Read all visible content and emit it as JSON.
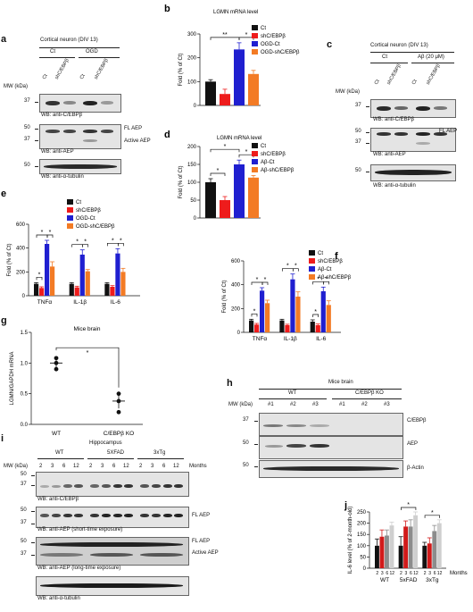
{
  "panels": {
    "a": {
      "label": "a",
      "title": "Cortical neuron (DIV 13)",
      "groups": [
        "Ct",
        "OGD"
      ],
      "lanes": [
        "Ct",
        "shC/EBPβ",
        "Ct",
        "shC/EBPβ"
      ],
      "mw_label": "MW (kDa)",
      "blots": [
        {
          "mw": [
            "37"
          ],
          "wb": "WB: anti-C/EBPβ",
          "side": []
        },
        {
          "mw": [
            "50",
            "37"
          ],
          "wb": "WB: anti-AEP",
          "side": [
            "FL AEP",
            "Active AEP"
          ]
        },
        {
          "mw": [
            "50"
          ],
          "wb": "WB: anti-α-tubulin",
          "side": []
        }
      ]
    },
    "c": {
      "label": "c",
      "title": "Cortical neuron (DIV 13)",
      "groups": [
        "Ct",
        "Aβ (20 μM)"
      ],
      "lanes": [
        "Ct",
        "shC/EBPβ",
        "Ct",
        "shC/EBPβ"
      ],
      "mw_label": "MW (kDa)",
      "blots": [
        {
          "mw": [
            "37"
          ],
          "wb": "WB: anti-C/EBPβ",
          "side": []
        },
        {
          "mw": [
            "50",
            "37"
          ],
          "wb": "WB: anti-AEP",
          "side": [
            "FL AEP",
            "Active AEP"
          ]
        },
        {
          "mw": [
            "50"
          ],
          "wb": "WB: anti-α-tubulin",
          "side": []
        }
      ]
    },
    "g": {
      "label": "g",
      "title": "Mice brain",
      "ylabel": "LGMN/GAPDH mRNA",
      "yticks": [
        "0.0",
        "0.5",
        "1.0",
        "1.5"
      ],
      "xticks": [
        "WT",
        "C/EBPβ KO"
      ],
      "sig": "*"
    },
    "h": {
      "label": "h",
      "title": "Mice brain",
      "mw_label": "MW (kDa)",
      "groups": [
        "WT",
        "C/EBPβ KO"
      ],
      "lanes": [
        "#1",
        "#2",
        "#3",
        "#1",
        "#2",
        "#3"
      ],
      "blots": [
        {
          "mw": [
            "37"
          ],
          "name": "C/EBPβ"
        },
        {
          "mw": [
            "50"
          ],
          "name": "AEP"
        },
        {
          "mw": [
            "50"
          ],
          "name": "β-Actin"
        }
      ]
    },
    "i": {
      "label": "i",
      "title": "Hippocampus",
      "mw_label": "MW (kDa)",
      "groups": [
        "WT",
        "5XFAD",
        "3xTg"
      ],
      "lanes": [
        "2",
        "3",
        "6",
        "12",
        "2",
        "3",
        "6",
        "12",
        "2",
        "3",
        "6",
        "12"
      ],
      "lanes_suffix": "Months",
      "blots": [
        {
          "mw": [
            "50",
            "37"
          ],
          "wb": "WB: anti-C/EBPβ",
          "side": []
        },
        {
          "mw": [
            "50",
            "37"
          ],
          "wb": "WB: anti-AEP (short-time exposure)",
          "side": [
            "FL AEP"
          ]
        },
        {
          "mw": [
            "50",
            "37"
          ],
          "wb": "WB: anti-AEP (long-time exposure)",
          "side": [
            "FL AEP",
            "Active AEP"
          ]
        },
        {
          "mw": [],
          "wb": "WB: anti-α-tubulin",
          "side": []
        }
      ]
    }
  },
  "chart_data": [
    {
      "panel": "b",
      "type": "bar",
      "title": "LGMN mRNA level",
      "ylabel": "Fold (% of Ct)",
      "ylim": [
        0,
        300
      ],
      "yticks": [
        0,
        100,
        200,
        300
      ],
      "categories": [
        "Ct",
        "shC/EBPβ",
        "OGD-Ct",
        "OGD-shC/EBPβ"
      ],
      "colors": [
        "#111111",
        "#ee1c1c",
        "#1f1fd0",
        "#f37b25"
      ],
      "values": [
        100,
        48,
        235,
        132
      ],
      "errors": [
        8,
        20,
        28,
        15
      ],
      "significance": [
        {
          "from": 0,
          "to": 2,
          "label": "**"
        },
        {
          "from": 2,
          "to": 3,
          "label": "*"
        }
      ]
    },
    {
      "panel": "d",
      "type": "bar",
      "title": "LGMN mRNA level",
      "ylabel": "Fold (% of Ct)",
      "ylim": [
        0,
        200
      ],
      "yticks": [
        0,
        50,
        100,
        150,
        200
      ],
      "categories": [
        "Ct",
        "shC/EBPβ",
        "Aβ-Ct",
        "Aβ-shC/EBPβ"
      ],
      "colors": [
        "#111111",
        "#ee1c1c",
        "#1f1fd0",
        "#f37b25"
      ],
      "values": [
        100,
        50,
        150,
        113
      ],
      "errors": [
        10,
        10,
        12,
        6
      ],
      "significance": [
        {
          "from": 0,
          "to": 1,
          "label": "*"
        },
        {
          "from": 0,
          "to": 2,
          "label": "*"
        },
        {
          "from": 2,
          "to": 3,
          "label": "*"
        }
      ]
    },
    {
      "panel": "e",
      "type": "bar",
      "ylabel": "Fold (% of Ct)",
      "ylim": [
        0,
        600
      ],
      "yticks": [
        0,
        200,
        400,
        600
      ],
      "categories": [
        "TNFα",
        "IL-1β",
        "IL-6"
      ],
      "series": [
        {
          "name": "Ct",
          "color": "#111111",
          "values": [
            100,
            100,
            100
          ],
          "errors": [
            10,
            10,
            10
          ]
        },
        {
          "name": "shC/EBPβ",
          "color": "#ee1c1c",
          "values": [
            65,
            70,
            75
          ],
          "errors": [
            10,
            10,
            10
          ]
        },
        {
          "name": "OGD-Ct",
          "color": "#1f1fd0",
          "values": [
            435,
            345,
            355
          ],
          "errors": [
            30,
            40,
            40
          ]
        },
        {
          "name": "OGD-shC/EBPβ",
          "color": "#f37b25",
          "values": [
            245,
            205,
            200
          ],
          "errors": [
            40,
            15,
            30
          ]
        }
      ],
      "significance": [
        {
          "cat": 0,
          "from": 0,
          "to": 1,
          "label": "*"
        },
        {
          "cat": 0,
          "from": 0,
          "to": 2,
          "label": "*"
        },
        {
          "cat": 0,
          "from": 2,
          "to": 3,
          "label": "*"
        },
        {
          "cat": 1,
          "from": 0,
          "to": 2,
          "label": "*"
        },
        {
          "cat": 1,
          "from": 2,
          "to": 3,
          "label": "*"
        },
        {
          "cat": 2,
          "from": 0,
          "to": 2,
          "label": "*"
        },
        {
          "cat": 2,
          "from": 2,
          "to": 3,
          "label": "*"
        }
      ]
    },
    {
      "panel": "f",
      "type": "bar",
      "ylabel": "Fold (% of Ct)",
      "ylim": [
        0,
        600
      ],
      "yticks": [
        0,
        200,
        400,
        600
      ],
      "categories": [
        "TNFα",
        "IL-1β",
        "IL-6"
      ],
      "series": [
        {
          "name": "Ct",
          "color": "#111111",
          "values": [
            100,
            100,
            90
          ],
          "errors": [
            10,
            10,
            15
          ]
        },
        {
          "name": "shC/EBPβ",
          "color": "#ee1c1c",
          "values": [
            65,
            60,
            60
          ],
          "errors": [
            10,
            8,
            10
          ]
        },
        {
          "name": "Aβ-Ct",
          "color": "#1f1fd0",
          "values": [
            350,
            445,
            345
          ],
          "errors": [
            25,
            45,
            35
          ]
        },
        {
          "name": "Aβ-shC/EBPβ",
          "color": "#f37b25",
          "values": [
            245,
            300,
            230
          ],
          "errors": [
            25,
            40,
            35
          ]
        }
      ],
      "significance": [
        {
          "cat": 0,
          "from": 0,
          "to": 1,
          "label": "*"
        },
        {
          "cat": 0,
          "from": 0,
          "to": 2,
          "label": "*"
        },
        {
          "cat": 0,
          "from": 2,
          "to": 3,
          "label": "*"
        },
        {
          "cat": 1,
          "from": 0,
          "to": 2,
          "label": "*"
        },
        {
          "cat": 1,
          "from": 2,
          "to": 3,
          "label": "*"
        },
        {
          "cat": 2,
          "from": 0,
          "to": 1,
          "label": "*"
        },
        {
          "cat": 2,
          "from": 0,
          "to": 2,
          "label": "*"
        },
        {
          "cat": 2,
          "from": 2,
          "to": 3,
          "label": "*"
        }
      ]
    },
    {
      "panel": "g",
      "type": "scatter",
      "ylabel": "LGMN/GAPDH mRNA",
      "ylim": [
        0,
        1.5
      ],
      "categories": [
        "WT",
        "C/EBPβ KO"
      ],
      "points": [
        [
          1.08,
          1.0,
          0.9
        ],
        [
          0.5,
          0.38,
          0.2
        ]
      ],
      "means": [
        1.0,
        0.38
      ],
      "errors": [
        0.1,
        0.12
      ]
    },
    {
      "panel": "j",
      "type": "bar",
      "ylabel": "IL-6 level (% of 2-month-old)",
      "ylim": [
        0,
        250
      ],
      "yticks": [
        0,
        50,
        100,
        150,
        200,
        250
      ],
      "groups": [
        "WT",
        "5xFAD",
        "3xTg"
      ],
      "months": [
        "2",
        "3",
        "6",
        "12"
      ],
      "months_label": "Months",
      "colors": [
        "#111111",
        "#d11a1a",
        "#8c8c8c",
        "#cfcfcf"
      ],
      "values": [
        [
          100,
          140,
          145,
          190
        ],
        [
          100,
          185,
          185,
          235
        ],
        [
          100,
          110,
          165,
          200
        ]
      ],
      "errors": [
        [
          30,
          30,
          25,
          15
        ],
        [
          40,
          25,
          30,
          15
        ],
        [
          15,
          25,
          25,
          15
        ]
      ],
      "significance": [
        {
          "group": 1,
          "label": "*"
        },
        {
          "group": 2,
          "label": "*"
        }
      ]
    }
  ]
}
